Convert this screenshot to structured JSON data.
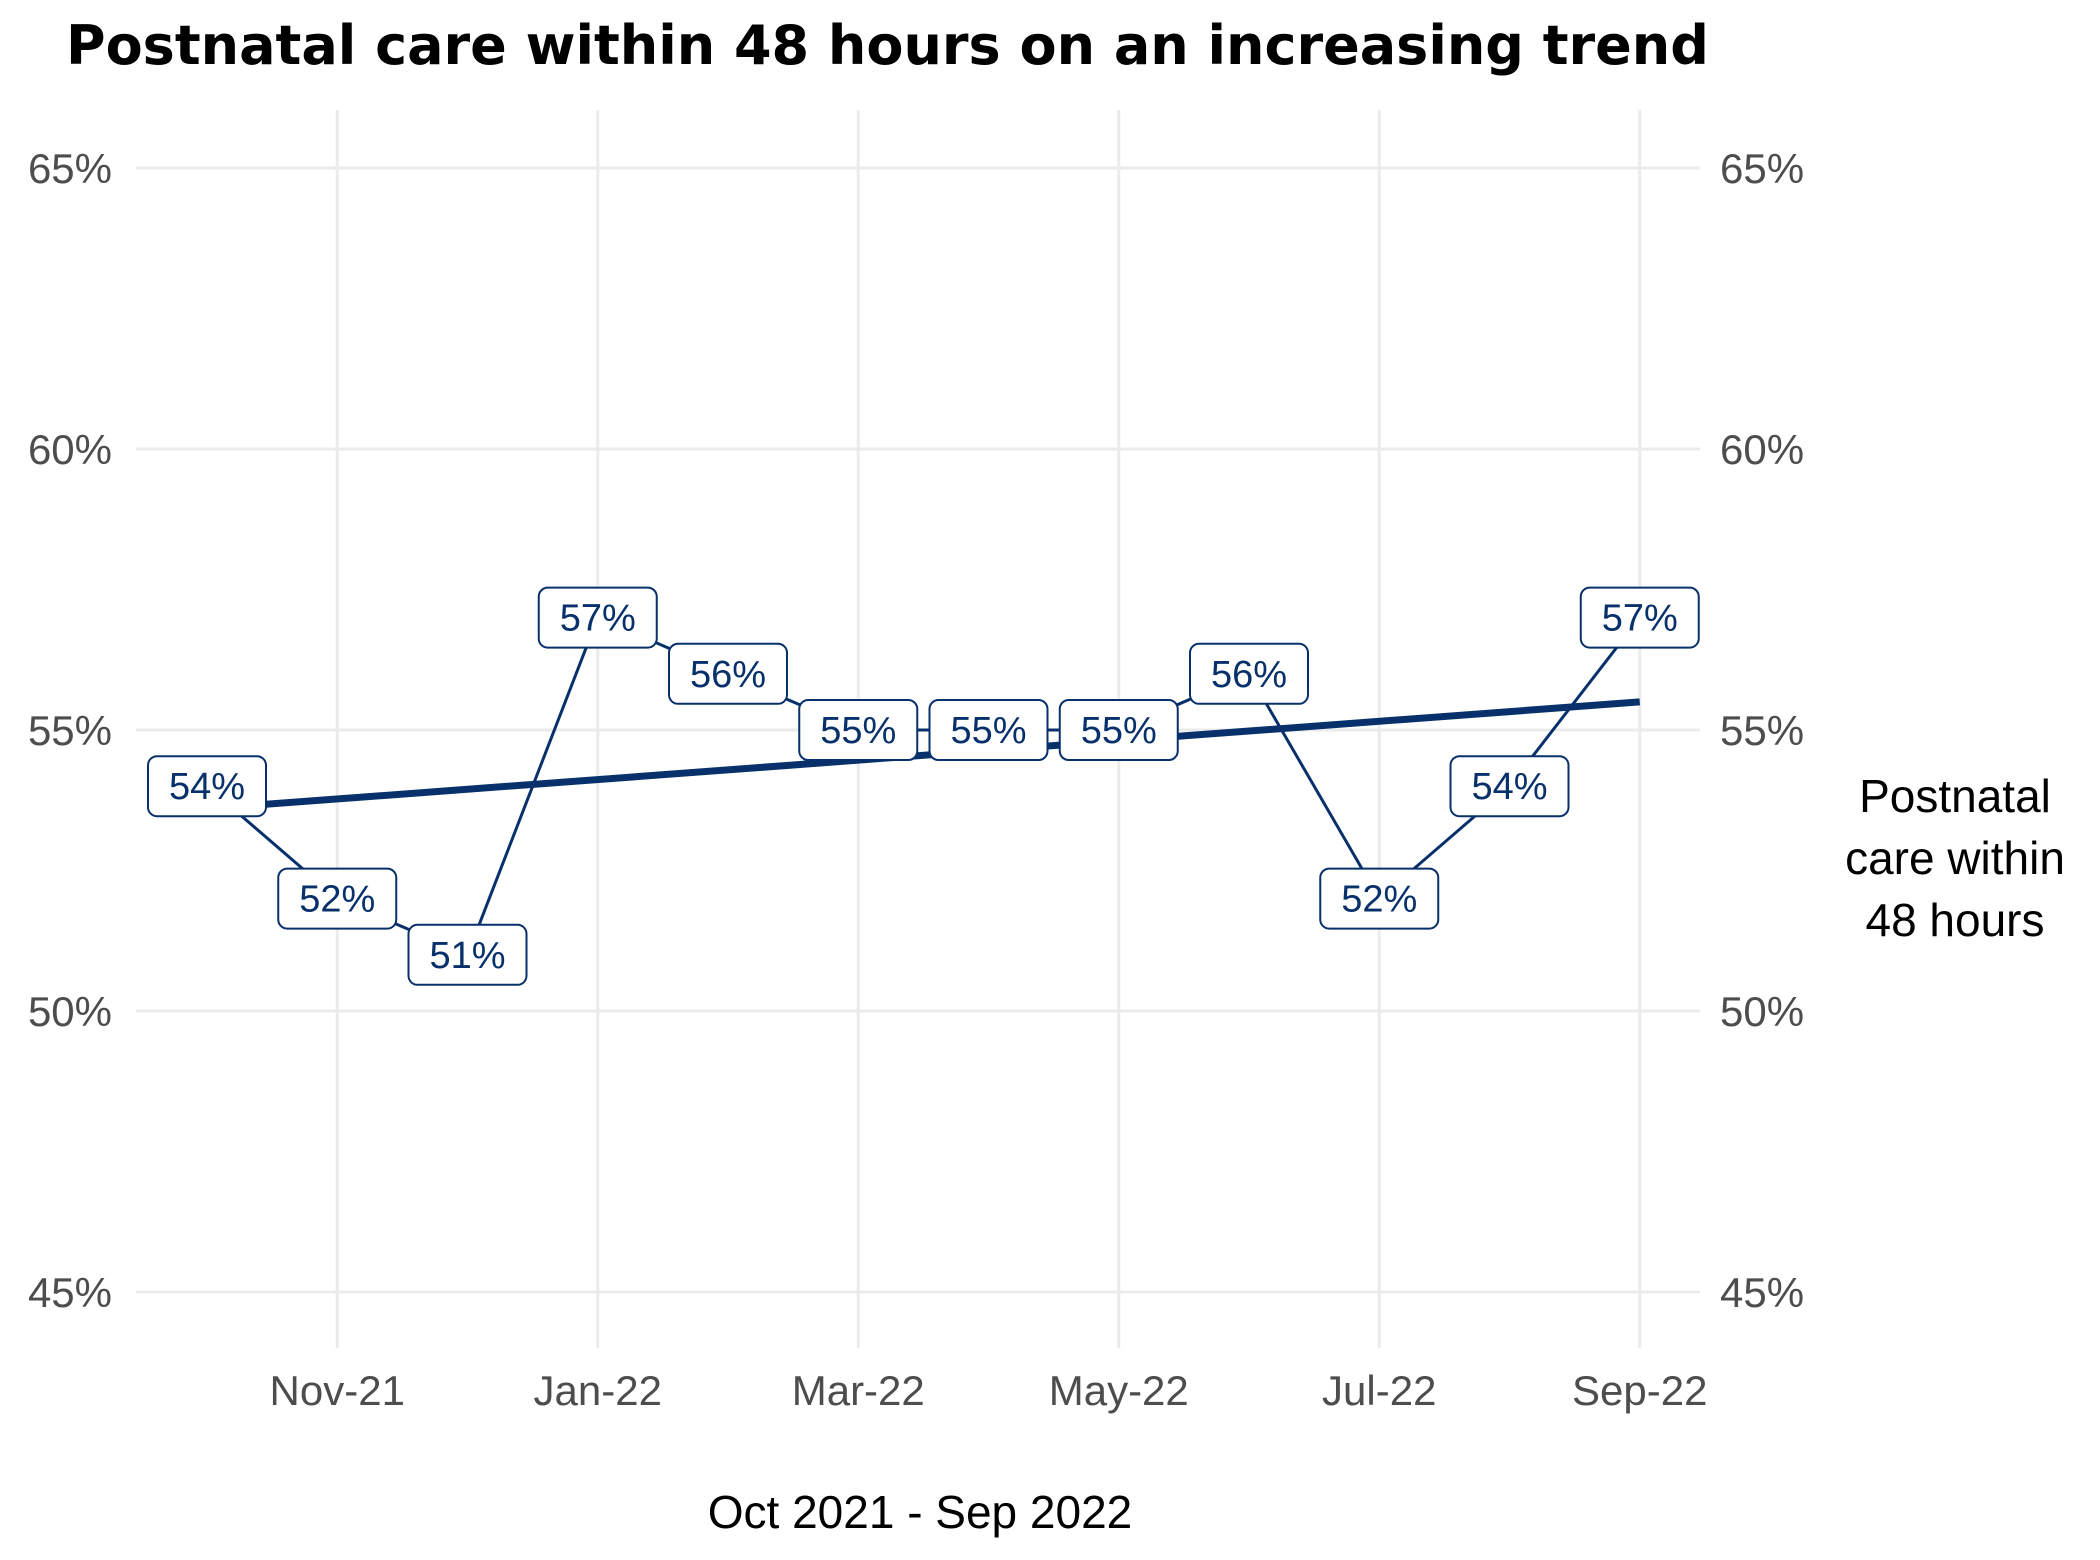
{
  "chart_data": {
    "type": "line",
    "title": "Postnatal care within 48 hours on an increasing trend",
    "xlabel": "Oct 2021 - Sep 2022",
    "ylabel": "",
    "x": [
      "2021-10",
      "2021-11",
      "2021-12",
      "2022-01",
      "2022-02",
      "2022-03",
      "2022-04",
      "2022-05",
      "2022-06",
      "2022-07",
      "2022-08",
      "2022-09"
    ],
    "x_tick_labels": [
      "Nov-21",
      "Jan-22",
      "Mar-22",
      "May-22",
      "Jul-22",
      "Sep-22"
    ],
    "x_tick_positions": [
      "2021-11",
      "2022-01",
      "2022-03",
      "2022-05",
      "2022-07",
      "2022-09"
    ],
    "y_ticks": [
      45,
      50,
      55,
      60,
      65
    ],
    "y_tick_labels": [
      "45%",
      "50%",
      "55%",
      "60%",
      "65%"
    ],
    "ylim": [
      44,
      66
    ],
    "series": [
      {
        "name": "Postnatal care within 48 hours",
        "values": [
          54,
          52,
          51,
          57,
          56,
          55,
          55,
          55,
          56,
          52,
          54,
          57
        ],
        "labels": [
          "54%",
          "52%",
          "51%",
          "57%",
          "56%",
          "55%",
          "55%",
          "55%",
          "56%",
          "52%",
          "54%",
          "57%"
        ],
        "color": "#08306b"
      }
    ],
    "trend": {
      "start": 53.6,
      "end": 55.5,
      "color": "#08306b"
    },
    "grid": true,
    "secondary_y_axis": true,
    "legend": "right"
  }
}
